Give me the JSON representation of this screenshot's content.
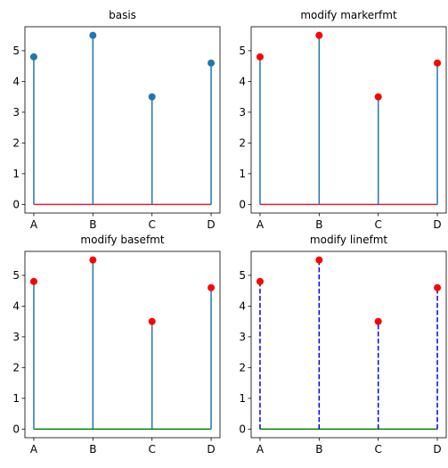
{
  "chart_data": [
    {
      "type": "stem",
      "title": "basis",
      "categories": [
        "A",
        "B",
        "C",
        "D"
      ],
      "values": [
        4.8,
        5.5,
        3.5,
        4.6
      ],
      "ylim": [
        -0.28,
        5.78
      ],
      "yticks": [
        0,
        1,
        2,
        3,
        4,
        5
      ],
      "grid": false,
      "line_color": "#1f77b4",
      "line_style": "solid",
      "marker_color": "#1f77b4",
      "base_color": "#d62728"
    },
    {
      "type": "stem",
      "title": "modify markerfmt",
      "categories": [
        "A",
        "B",
        "C",
        "D"
      ],
      "values": [
        4.8,
        5.5,
        3.5,
        4.6
      ],
      "ylim": [
        -0.28,
        5.78
      ],
      "yticks": [
        0,
        1,
        2,
        3,
        4,
        5
      ],
      "grid": false,
      "line_color": "#1f77b4",
      "line_style": "solid",
      "marker_color": "#ff0000",
      "base_color": "#d62728"
    },
    {
      "type": "stem",
      "title": "modify basefmt",
      "categories": [
        "A",
        "B",
        "C",
        "D"
      ],
      "values": [
        4.8,
        5.5,
        3.5,
        4.6
      ],
      "ylim": [
        -0.28,
        5.78
      ],
      "yticks": [
        0,
        1,
        2,
        3,
        4,
        5
      ],
      "grid": false,
      "line_color": "#1f77b4",
      "line_style": "solid",
      "marker_color": "#ff0000",
      "base_color": "#008000"
    },
    {
      "type": "stem",
      "title": "modify linefmt",
      "categories": [
        "A",
        "B",
        "C",
        "D"
      ],
      "values": [
        4.8,
        5.5,
        3.5,
        4.6
      ],
      "ylim": [
        -0.28,
        5.78
      ],
      "yticks": [
        0,
        1,
        2,
        3,
        4,
        5
      ],
      "grid": false,
      "line_color": "#0000ff",
      "line_style": "dashed",
      "marker_color": "#ff0000",
      "base_color": "#008000"
    }
  ]
}
